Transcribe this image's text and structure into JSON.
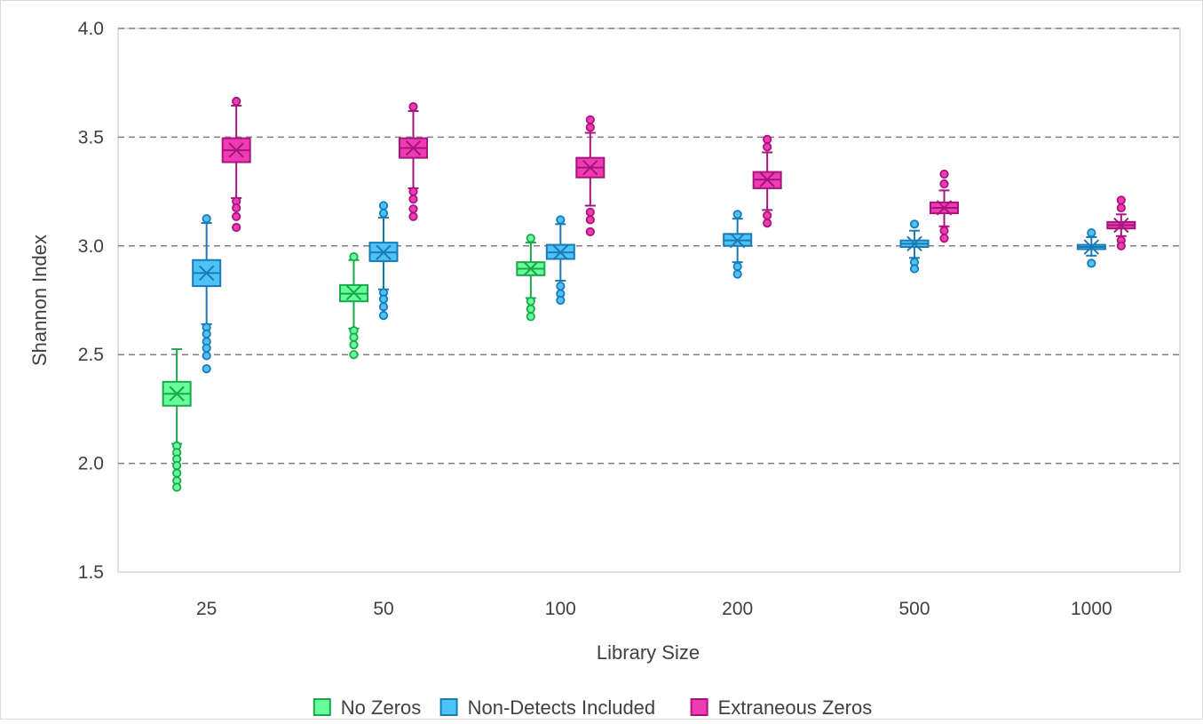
{
  "chart_data": {
    "type": "box",
    "xlabel": "Library Size",
    "ylabel": "Shannon Index",
    "ylim": [
      1.5,
      4.0
    ],
    "yticks": [
      "1.5",
      "2.0",
      "2.5",
      "3.0",
      "3.5",
      "4.0"
    ],
    "ytick_values": [
      1.5,
      2.0,
      2.5,
      3.0,
      3.5,
      4.0
    ],
    "grid": "horizontal dashed",
    "legend_position": "bottom",
    "categories": [
      "25",
      "50",
      "100",
      "200",
      "500",
      "1000"
    ],
    "series": [
      {
        "name": "No Zeros",
        "fill": "#66ff99",
        "stroke": "#1aa84a",
        "boxes": [
          {
            "category": "25",
            "min": 2.09,
            "q1": 2.265,
            "median": 2.32,
            "mean": 2.32,
            "q3": 2.375,
            "max": 2.525,
            "outliers": [
              2.08,
              2.05,
              2.02,
              1.99,
              1.955,
              1.92,
              1.89
            ]
          },
          {
            "category": "50",
            "min": 2.62,
            "q1": 2.745,
            "median": 2.78,
            "mean": 2.785,
            "q3": 2.82,
            "max": 2.935,
            "outliers": [
              2.95,
              2.61,
              2.58,
              2.545,
              2.5
            ]
          },
          {
            "category": "100",
            "min": 2.76,
            "q1": 2.865,
            "median": 2.895,
            "mean": 2.895,
            "q3": 2.925,
            "max": 3.015,
            "outliers": [
              3.035,
              2.745,
              2.71,
              2.675
            ]
          }
        ]
      },
      {
        "name": "Non-Detects Included",
        "fill": "#4dc3f5",
        "stroke": "#1a7ab8",
        "boxes": [
          {
            "category": "25",
            "min": 2.64,
            "q1": 2.815,
            "median": 2.875,
            "mean": 2.875,
            "q3": 2.935,
            "max": 3.105,
            "outliers": [
              3.125,
              2.625,
              2.595,
              2.56,
              2.53,
              2.495,
              2.435
            ]
          },
          {
            "category": "50",
            "min": 2.8,
            "q1": 2.93,
            "median": 2.97,
            "mean": 2.97,
            "q3": 3.015,
            "max": 3.13,
            "outliers": [
              3.185,
              3.15,
              2.785,
              2.755,
              2.72,
              2.68
            ]
          },
          {
            "category": "100",
            "min": 2.84,
            "q1": 2.94,
            "median": 2.97,
            "mean": 2.97,
            "q3": 3.005,
            "max": 3.1,
            "outliers": [
              3.12,
              2.815,
              2.78,
              2.75
            ]
          },
          {
            "category": "200",
            "min": 2.925,
            "q1": 3.0,
            "median": 3.025,
            "mean": 3.025,
            "q3": 3.055,
            "max": 3.125,
            "outliers": [
              3.145,
              2.905,
              2.87
            ]
          },
          {
            "category": "500",
            "min": 2.945,
            "q1": 2.995,
            "median": 3.01,
            "mean": 3.01,
            "q3": 3.025,
            "max": 3.07,
            "outliers": [
              3.1,
              2.925,
              2.895
            ]
          },
          {
            "category": "1000",
            "min": 2.955,
            "q1": 2.985,
            "median": 2.995,
            "mean": 2.995,
            "q3": 3.005,
            "max": 3.04,
            "outliers": [
              3.06,
              2.92
            ]
          }
        ]
      },
      {
        "name": "Extraneous Zeros",
        "fill": "#f03cb4",
        "stroke": "#a8157a",
        "boxes": [
          {
            "category": "25",
            "min": 3.22,
            "q1": 3.385,
            "median": 3.44,
            "mean": 3.44,
            "q3": 3.495,
            "max": 3.645,
            "outliers": [
              3.665,
              3.205,
              3.175,
              3.135,
              3.085
            ]
          },
          {
            "category": "50",
            "min": 3.265,
            "q1": 3.405,
            "median": 3.45,
            "mean": 3.45,
            "q3": 3.495,
            "max": 3.62,
            "outliers": [
              3.64,
              3.25,
              3.215,
              3.17,
              3.135
            ]
          },
          {
            "category": "100",
            "min": 3.185,
            "q1": 3.315,
            "median": 3.36,
            "mean": 3.36,
            "q3": 3.405,
            "max": 3.52,
            "outliers": [
              3.58,
              3.545,
              3.155,
              3.12,
              3.065
            ]
          },
          {
            "category": "200",
            "min": 3.165,
            "q1": 3.265,
            "median": 3.305,
            "mean": 3.305,
            "q3": 3.34,
            "max": 3.43,
            "outliers": [
              3.49,
              3.455,
              3.14,
              3.105
            ]
          },
          {
            "category": "500",
            "min": 3.09,
            "q1": 3.15,
            "median": 3.175,
            "mean": 3.175,
            "q3": 3.2,
            "max": 3.255,
            "outliers": [
              3.33,
              3.285,
              3.07,
              3.035
            ]
          },
          {
            "category": "1000",
            "min": 3.045,
            "q1": 3.08,
            "median": 3.095,
            "mean": 3.095,
            "q3": 3.11,
            "max": 3.145,
            "outliers": [
              3.21,
              3.175,
              3.025,
              3.0
            ]
          }
        ]
      }
    ]
  }
}
